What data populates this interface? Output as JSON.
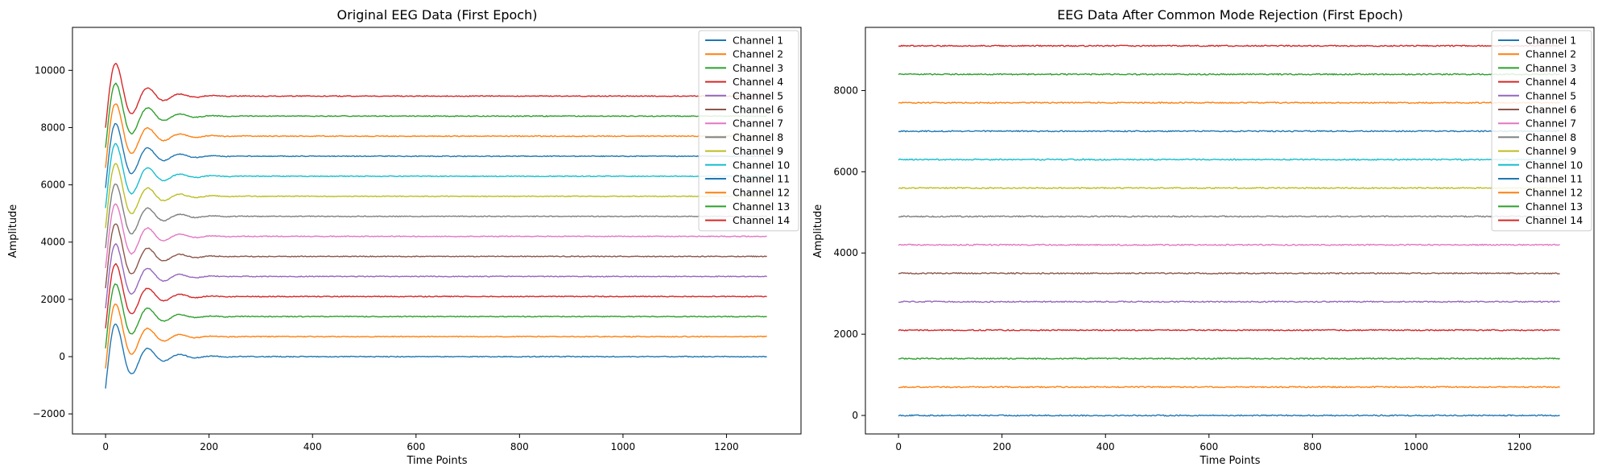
{
  "chart_data": [
    {
      "type": "line",
      "title": "Original EEG Data (First Epoch)",
      "xlabel": "Time Points",
      "ylabel": "Amplitude",
      "xlim": [
        -64,
        1344
      ],
      "ylim": [
        -2700,
        11500
      ],
      "xticks": [
        0,
        200,
        400,
        600,
        800,
        1000,
        1200
      ],
      "yticks": [
        -2000,
        0,
        2000,
        4000,
        6000,
        8000,
        10000
      ],
      "legend_position": "top-right",
      "grid": false,
      "n_points": 1280,
      "series": [
        {
          "name": "Channel 1",
          "baseline": 0,
          "transient": true,
          "color": "#1f77b4"
        },
        {
          "name": "Channel 2",
          "baseline": 700,
          "transient": true,
          "color": "#ff7f0e"
        },
        {
          "name": "Channel 3",
          "baseline": 1400,
          "transient": true,
          "color": "#2ca02c"
        },
        {
          "name": "Channel 4",
          "baseline": 2100,
          "transient": true,
          "color": "#d62728"
        },
        {
          "name": "Channel 5",
          "baseline": 2800,
          "transient": true,
          "color": "#9467bd"
        },
        {
          "name": "Channel 6",
          "baseline": 3500,
          "transient": true,
          "color": "#8c564b"
        },
        {
          "name": "Channel 7",
          "baseline": 4200,
          "transient": true,
          "color": "#e377c2"
        },
        {
          "name": "Channel 8",
          "baseline": 4900,
          "transient": true,
          "color": "#7f7f7f"
        },
        {
          "name": "Channel 9",
          "baseline": 5600,
          "transient": true,
          "color": "#bcbd22"
        },
        {
          "name": "Channel 10",
          "baseline": 6300,
          "transient": true,
          "color": "#17becf"
        },
        {
          "name": "Channel 11",
          "baseline": 7000,
          "transient": true,
          "color": "#1f77b4"
        },
        {
          "name": "Channel 12",
          "baseline": 7700,
          "transient": true,
          "color": "#ff7f0e"
        },
        {
          "name": "Channel 13",
          "baseline": 8400,
          "transient": true,
          "color": "#2ca02c"
        },
        {
          "name": "Channel 14",
          "baseline": 9100,
          "transient": true,
          "color": "#d62728"
        }
      ]
    },
    {
      "type": "line",
      "title": "EEG Data After Common Mode Rejection (First Epoch)",
      "xlabel": "Time Points",
      "ylabel": "Amplitude",
      "xlim": [
        -64,
        1344
      ],
      "ylim": [
        -455,
        9555
      ],
      "xticks": [
        0,
        200,
        400,
        600,
        800,
        1000,
        1200
      ],
      "yticks": [
        0,
        2000,
        4000,
        6000,
        8000
      ],
      "legend_position": "top-right",
      "grid": false,
      "n_points": 1280,
      "series": [
        {
          "name": "Channel 1",
          "baseline": 0,
          "transient": false,
          "color": "#1f77b4"
        },
        {
          "name": "Channel 2",
          "baseline": 700,
          "transient": false,
          "color": "#ff7f0e"
        },
        {
          "name": "Channel 3",
          "baseline": 1400,
          "transient": false,
          "color": "#2ca02c"
        },
        {
          "name": "Channel 4",
          "baseline": 2100,
          "transient": false,
          "color": "#d62728"
        },
        {
          "name": "Channel 5",
          "baseline": 2800,
          "transient": false,
          "color": "#9467bd"
        },
        {
          "name": "Channel 6",
          "baseline": 3500,
          "transient": false,
          "color": "#8c564b"
        },
        {
          "name": "Channel 7",
          "baseline": 4200,
          "transient": false,
          "color": "#e377c2"
        },
        {
          "name": "Channel 8",
          "baseline": 4900,
          "transient": false,
          "color": "#7f7f7f"
        },
        {
          "name": "Channel 9",
          "baseline": 5600,
          "transient": false,
          "color": "#bcbd22"
        },
        {
          "name": "Channel 10",
          "baseline": 6300,
          "transient": false,
          "color": "#17becf"
        },
        {
          "name": "Channel 11",
          "baseline": 7000,
          "transient": false,
          "color": "#1f77b4"
        },
        {
          "name": "Channel 12",
          "baseline": 7700,
          "transient": false,
          "color": "#ff7f0e"
        },
        {
          "name": "Channel 13",
          "baseline": 8400,
          "transient": false,
          "color": "#2ca02c"
        },
        {
          "name": "Channel 14",
          "baseline": 9100,
          "transient": false,
          "color": "#d62728"
        }
      ]
    }
  ]
}
